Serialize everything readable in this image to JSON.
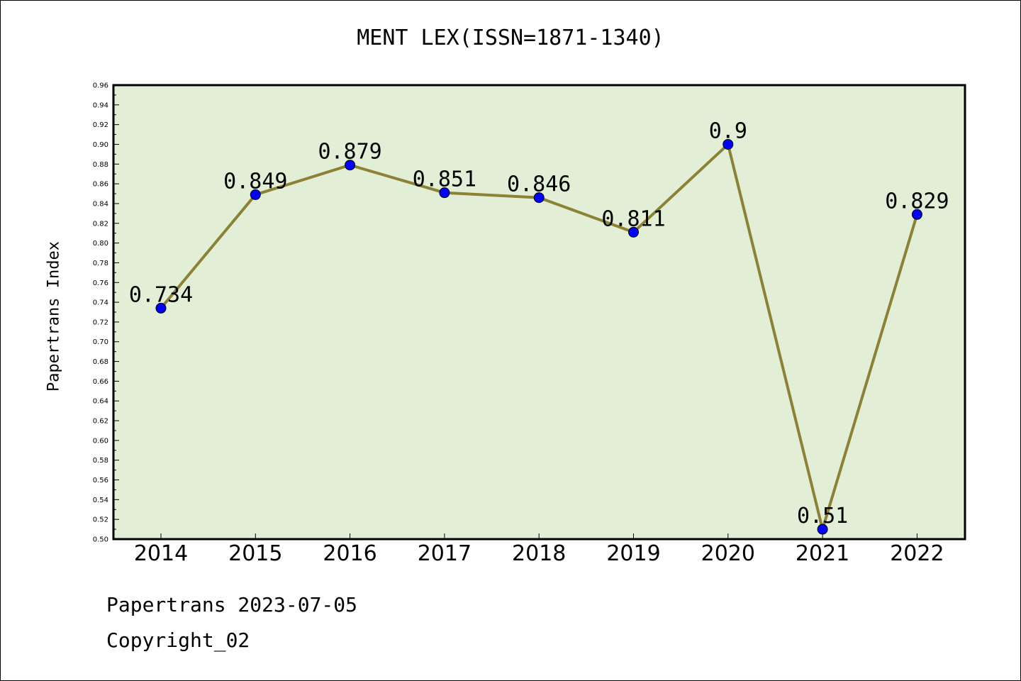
{
  "chart_data": {
    "type": "line",
    "title": "MENT LEX(ISSN=1871-1340)",
    "xlabel": "",
    "ylabel": "Papertrans Index",
    "categories": [
      "2014",
      "2015",
      "2016",
      "2017",
      "2018",
      "2019",
      "2020",
      "2021",
      "2022"
    ],
    "values": [
      0.734,
      0.849,
      0.879,
      0.851,
      0.846,
      0.811,
      0.9,
      0.51,
      0.829
    ],
    "data_labels": [
      "0.734",
      "0.849",
      "0.879",
      "0.851",
      "0.846",
      "0.811",
      "0.9",
      "0.51",
      "0.829"
    ],
    "ylim": [
      0.5,
      0.96
    ],
    "yticks": [
      "0.50",
      "0.52",
      "0.54",
      "0.56",
      "0.58",
      "0.60",
      "0.62",
      "0.64",
      "0.66",
      "0.68",
      "0.70",
      "0.72",
      "0.74",
      "0.76",
      "0.78",
      "0.80",
      "0.82",
      "0.84",
      "0.86",
      "0.88",
      "0.90",
      "0.92",
      "0.94",
      "0.96"
    ],
    "grid": false,
    "legend": "none",
    "colors": {
      "plot_background": "#e2efd6",
      "line": "#8b8236",
      "marker": "#0000ff",
      "axis": "#000000"
    }
  },
  "footer": {
    "line1": "Papertrans 2023-07-05",
    "line2": "Copyright_02"
  }
}
